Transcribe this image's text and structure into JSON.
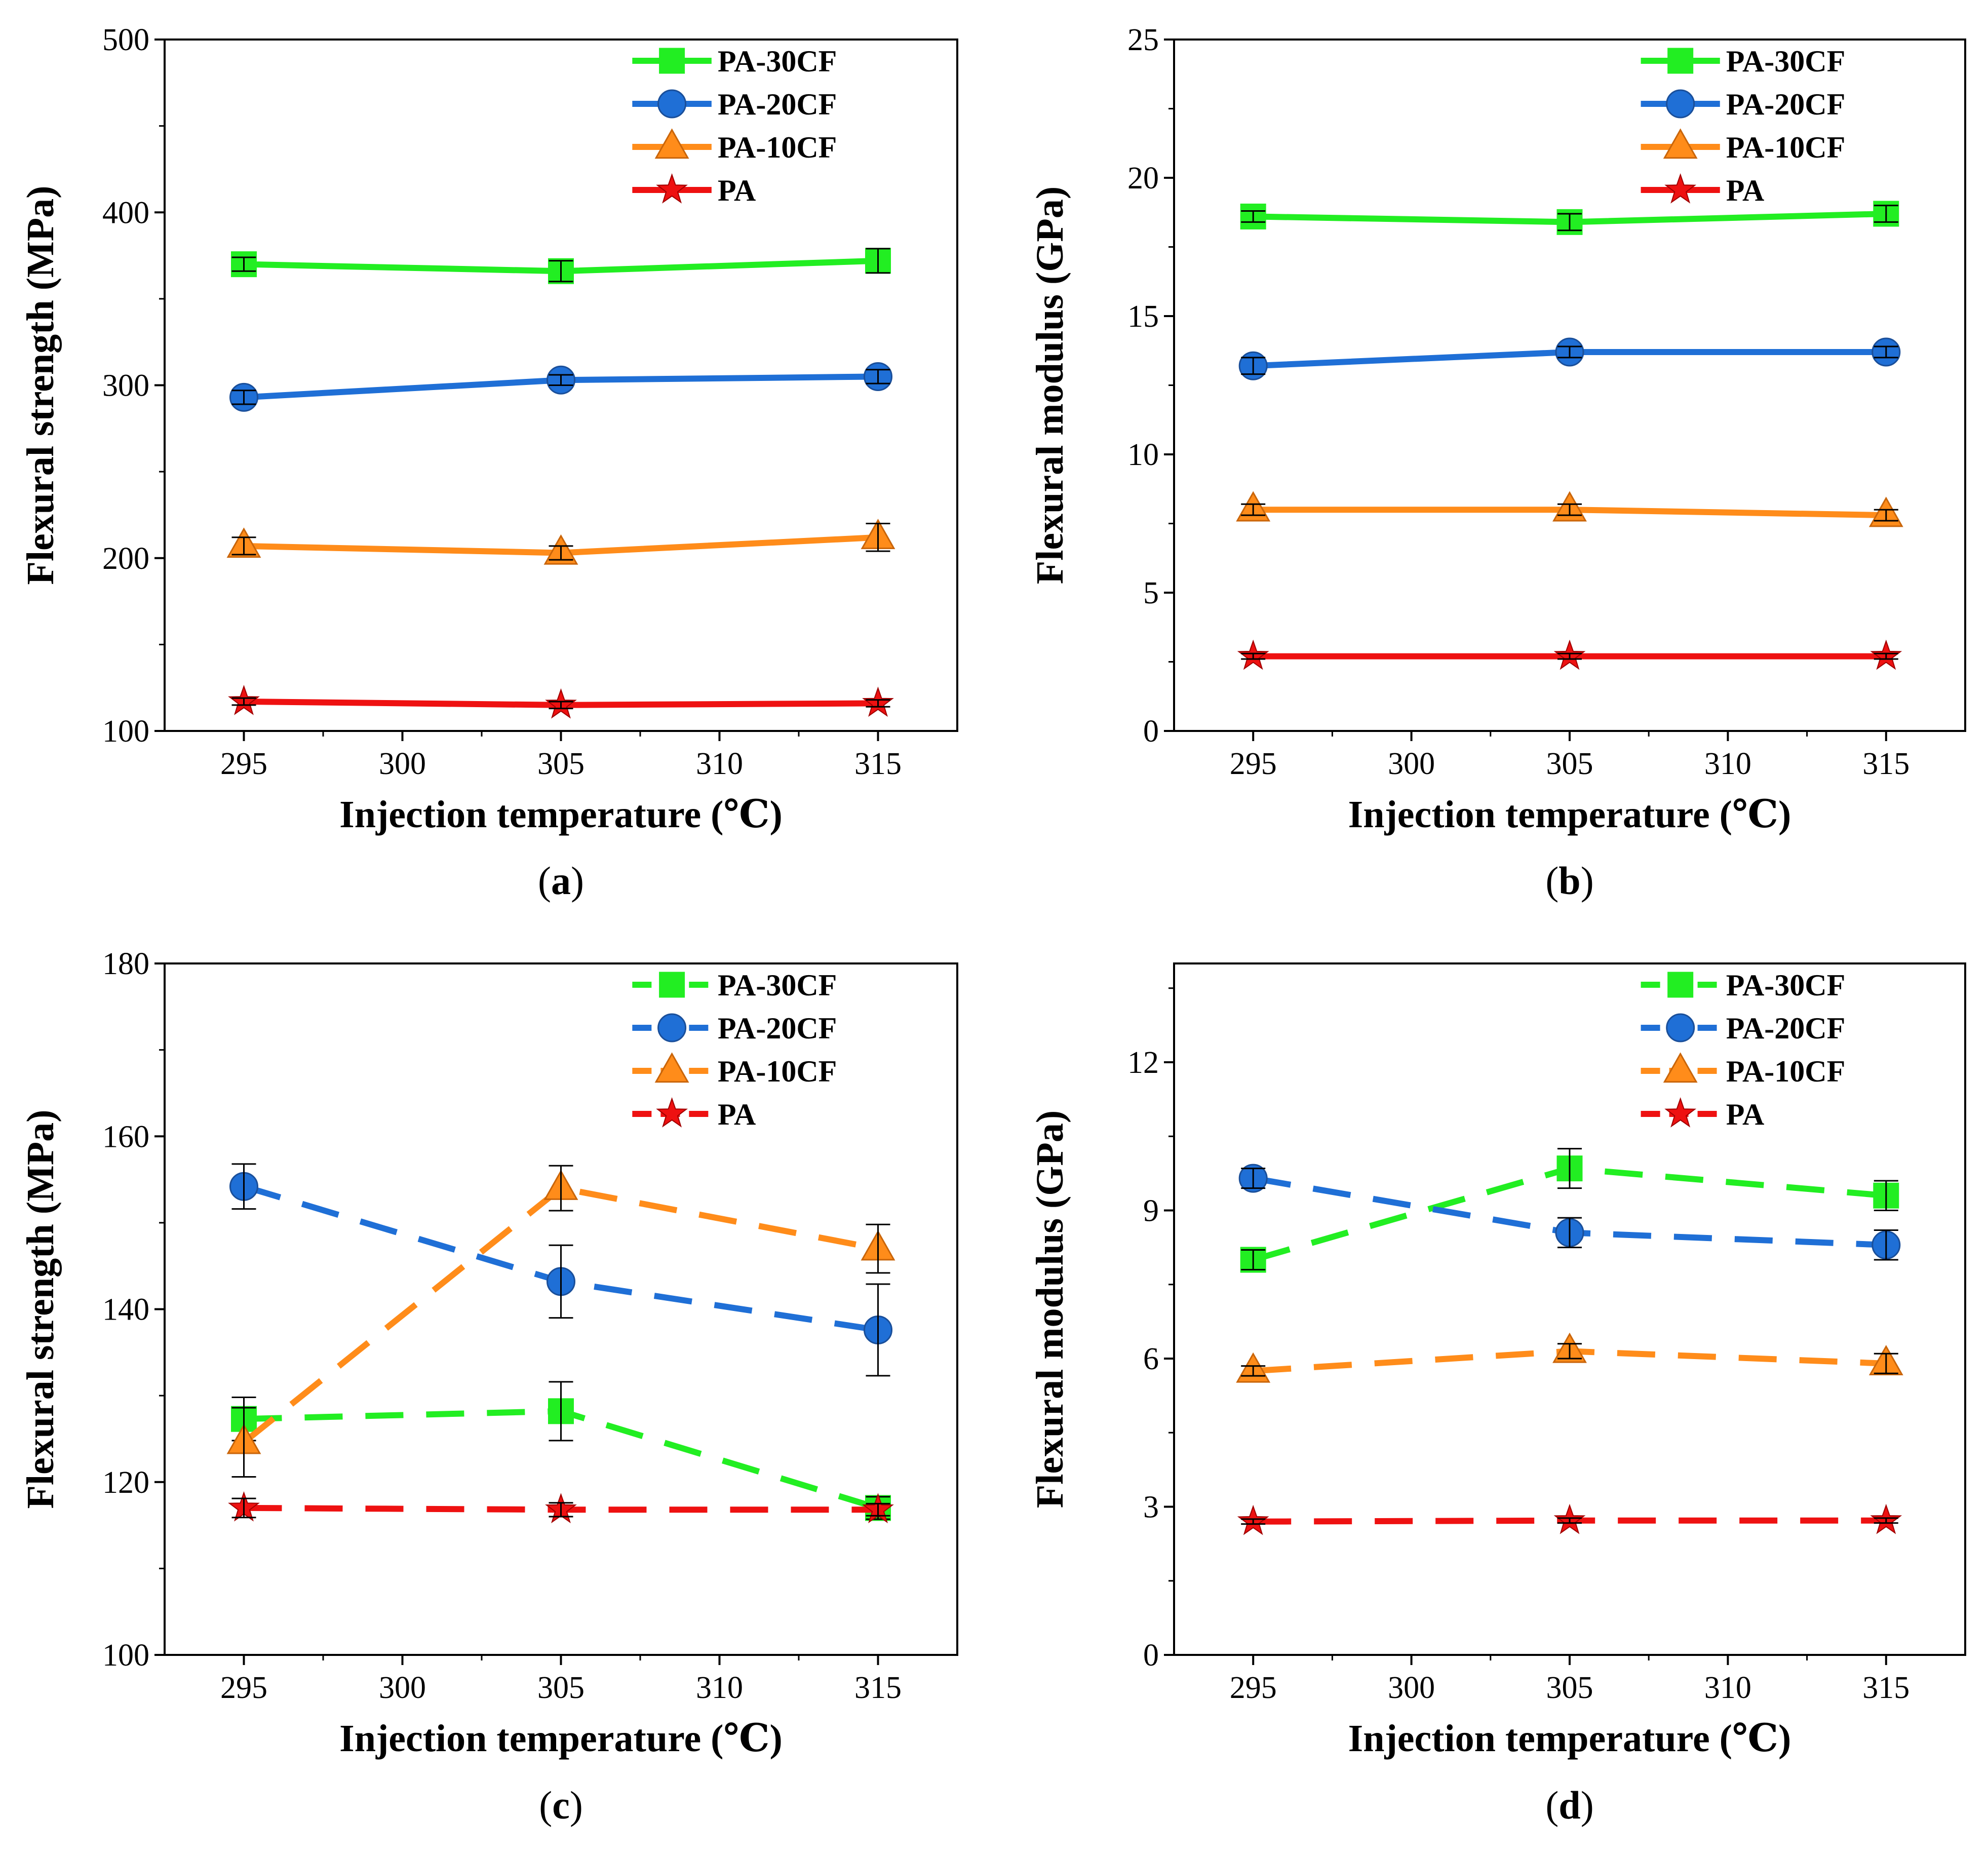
{
  "figure": {
    "panel_labels": [
      "a",
      "b",
      "c",
      "d"
    ]
  },
  "chart_data": [
    {
      "type": "line",
      "panel": "a",
      "title": "",
      "xlabel": "Injection temperature (℃)",
      "ylabel": "Flexural strength (MPa)",
      "xlim": [
        292.5,
        317.5
      ],
      "ylim": [
        100,
        500
      ],
      "xticks": [
        295,
        300,
        305,
        310,
        315
      ],
      "yticks": [
        100,
        200,
        300,
        400,
        500
      ],
      "line_style": "solid",
      "legend_position": "top-right",
      "x": [
        295,
        305,
        315
      ],
      "series": [
        {
          "name": "PA-30CF",
          "marker": "square",
          "color": "#22ee22",
          "values": [
            370,
            366,
            372
          ],
          "errors": [
            4,
            6,
            7
          ]
        },
        {
          "name": "PA-20CF",
          "marker": "circle",
          "color": "#1f6fd6",
          "values": [
            293,
            303,
            305
          ],
          "errors": [
            4,
            3,
            4
          ]
        },
        {
          "name": "PA-10CF",
          "marker": "triangle",
          "color": "#ff8c1a",
          "values": [
            207,
            203,
            212
          ],
          "errors": [
            5,
            4,
            8
          ]
        },
        {
          "name": "PA",
          "marker": "star",
          "color": "#ee1111",
          "values": [
            117,
            115,
            116
          ],
          "errors": [
            2,
            2,
            2
          ]
        }
      ]
    },
    {
      "type": "line",
      "panel": "b",
      "title": "",
      "xlabel": "Injection temperature (℃)",
      "ylabel": "Flexural modulus (GPa)",
      "xlim": [
        292.5,
        317.5
      ],
      "ylim": [
        0,
        25
      ],
      "xticks": [
        295,
        300,
        305,
        310,
        315
      ],
      "yticks": [
        0,
        5,
        10,
        15,
        20,
        25
      ],
      "line_style": "solid",
      "legend_position": "top-right",
      "x": [
        295,
        305,
        315
      ],
      "series": [
        {
          "name": "PA-30CF",
          "marker": "square",
          "color": "#22ee22",
          "values": [
            18.6,
            18.4,
            18.7
          ],
          "errors": [
            0.2,
            0.3,
            0.3
          ]
        },
        {
          "name": "PA-20CF",
          "marker": "circle",
          "color": "#1f6fd6",
          "values": [
            13.2,
            13.7,
            13.7
          ],
          "errors": [
            0.3,
            0.2,
            0.2
          ]
        },
        {
          "name": "PA-10CF",
          "marker": "triangle",
          "color": "#ff8c1a",
          "values": [
            8.0,
            8.0,
            7.8
          ],
          "errors": [
            0.2,
            0.2,
            0.2
          ]
        },
        {
          "name": "PA",
          "marker": "star",
          "color": "#ee1111",
          "values": [
            2.7,
            2.7,
            2.7
          ],
          "errors": [
            0.1,
            0.1,
            0.1
          ]
        }
      ]
    },
    {
      "type": "line",
      "panel": "c",
      "title": "",
      "xlabel": "Injection temperature (℃)",
      "ylabel": "Flexural strength (MPa)",
      "xlim": [
        292.5,
        317.5
      ],
      "ylim": [
        100,
        180
      ],
      "xticks": [
        295,
        300,
        305,
        310,
        315
      ],
      "yticks": [
        100,
        120,
        140,
        160,
        180
      ],
      "line_style": "dashed",
      "legend_position": "top-right",
      "x": [
        295,
        305,
        315
      ],
      "series": [
        {
          "name": "PA-30CF",
          "marker": "square",
          "color": "#22ee22",
          "values": [
            127.3,
            128.2,
            117.0
          ],
          "errors": [
            2.5,
            3.4,
            1.3
          ]
        },
        {
          "name": "PA-20CF",
          "marker": "circle",
          "color": "#1f6fd6",
          "values": [
            154.2,
            143.2,
            137.6
          ],
          "errors": [
            2.6,
            4.2,
            5.3
          ]
        },
        {
          "name": "PA-10CF",
          "marker": "triangle",
          "color": "#ff8c1a",
          "values": [
            124.6,
            154.0,
            147.0
          ],
          "errors": [
            4.0,
            2.6,
            2.8
          ]
        },
        {
          "name": "PA",
          "marker": "star",
          "color": "#ee1111",
          "values": [
            117.0,
            116.8,
            116.8
          ],
          "errors": [
            1.1,
            0.8,
            0.7
          ]
        }
      ]
    },
    {
      "type": "line",
      "panel": "d",
      "title": "",
      "xlabel": "Injection temperature (℃)",
      "ylabel": "Flexural modulus (GPa)",
      "xlim": [
        292.5,
        317.5
      ],
      "ylim": [
        0,
        14
      ],
      "xticks": [
        295,
        300,
        305,
        310,
        315
      ],
      "yticks": [
        0,
        3,
        6,
        9,
        12
      ],
      "line_style": "dashed",
      "legend_position": "top-right",
      "x": [
        295,
        305,
        315
      ],
      "series": [
        {
          "name": "PA-30CF",
          "marker": "square",
          "color": "#22ee22",
          "values": [
            8.0,
            9.85,
            9.3
          ],
          "errors": [
            0.2,
            0.4,
            0.3
          ]
        },
        {
          "name": "PA-20CF",
          "marker": "circle",
          "color": "#1f6fd6",
          "values": [
            9.65,
            8.55,
            8.3
          ],
          "errors": [
            0.2,
            0.3,
            0.3
          ]
        },
        {
          "name": "PA-10CF",
          "marker": "triangle",
          "color": "#ff8c1a",
          "values": [
            5.75,
            6.15,
            5.9
          ],
          "errors": [
            0.1,
            0.15,
            0.2
          ]
        },
        {
          "name": "PA",
          "marker": "star",
          "color": "#ee1111",
          "values": [
            2.7,
            2.72,
            2.72
          ],
          "errors": [
            0.05,
            0.05,
            0.05
          ]
        }
      ]
    }
  ]
}
